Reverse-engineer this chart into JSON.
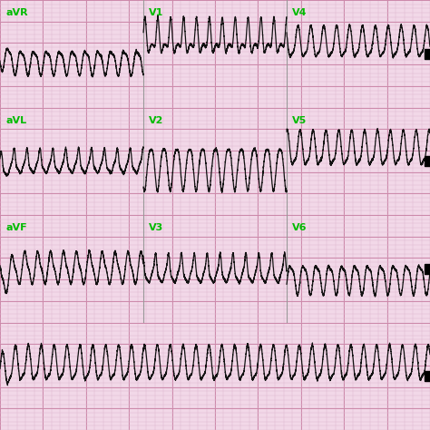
{
  "background_color": "#f2d8e8",
  "grid_minor_color": "#e0b8d0",
  "grid_major_color": "#cc88aa",
  "trace_color": "#111111",
  "label_color": "#00bb00",
  "label_fontsize": 8,
  "fig_width": 4.74,
  "fig_height": 4.74,
  "dpi": 100,
  "n_rows": 4,
  "duration": 10.0,
  "fs": 500,
  "vt_rate": 200,
  "row_labels": [
    [
      [
        "aVR",
        0.0
      ],
      [
        "V1",
        3.33
      ],
      [
        "V4",
        6.67
      ]
    ],
    [
      [
        "aVL",
        0.0
      ],
      [
        "V2",
        3.33
      ],
      [
        "V5",
        6.67
      ]
    ],
    [
      [
        "aVF",
        0.0
      ],
      [
        "V3",
        3.33
      ],
      [
        "V6",
        6.67
      ]
    ],
    []
  ]
}
